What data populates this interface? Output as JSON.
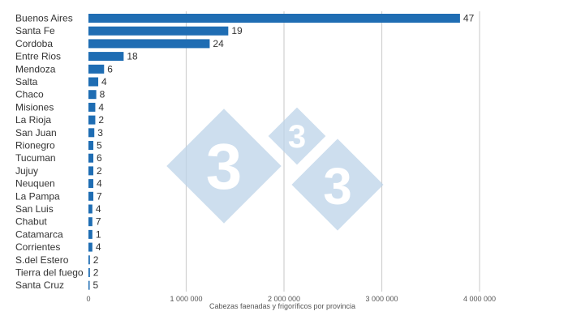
{
  "chart_data": {
    "type": "bar",
    "orientation": "horizontal",
    "categories": [
      "Buenos Aires",
      "Santa Fe",
      "Cordoba",
      "Entre Rios",
      "Mendoza",
      "Salta",
      "Chaco",
      "Misiones",
      "La Rioja",
      "San Juan",
      "Rionegro",
      "Tucuman",
      "Jujuy",
      "Neuquen",
      "La Pampa",
      "San Luis",
      "Chabut",
      "Catamarca",
      "Corrientes",
      "S.del Estero",
      "Tierra del fuego",
      "Santa Cruz"
    ],
    "values": [
      3800000,
      1430000,
      1240000,
      360000,
      160000,
      100000,
      80000,
      70000,
      70000,
      60000,
      50000,
      50000,
      50000,
      50000,
      50000,
      40000,
      40000,
      40000,
      40000,
      15000,
      15000,
      10000
    ],
    "data_labels": [
      "47",
      "19",
      "24",
      "18",
      "6",
      "4",
      "8",
      "4",
      "2",
      "3",
      "5",
      "6",
      "2",
      "4",
      "7",
      "4",
      "7",
      "1",
      "4",
      "2",
      "2",
      "5"
    ],
    "xlabel": "Cabezas faenadas y frigoríficos por provincia",
    "ylabel": "",
    "xlim": [
      0,
      4000000
    ],
    "x_ticks": [
      0,
      1000000,
      2000000,
      3000000,
      4000000
    ],
    "x_tick_labels": [
      "0",
      "1 000 000",
      "2 000 000",
      "3 000 000",
      "4 000 000"
    ],
    "grid": "vertical",
    "bar_color": "#1f6db3",
    "legend": "none"
  },
  "watermark": {
    "glyph": "3",
    "color": "#bcd3e8"
  }
}
